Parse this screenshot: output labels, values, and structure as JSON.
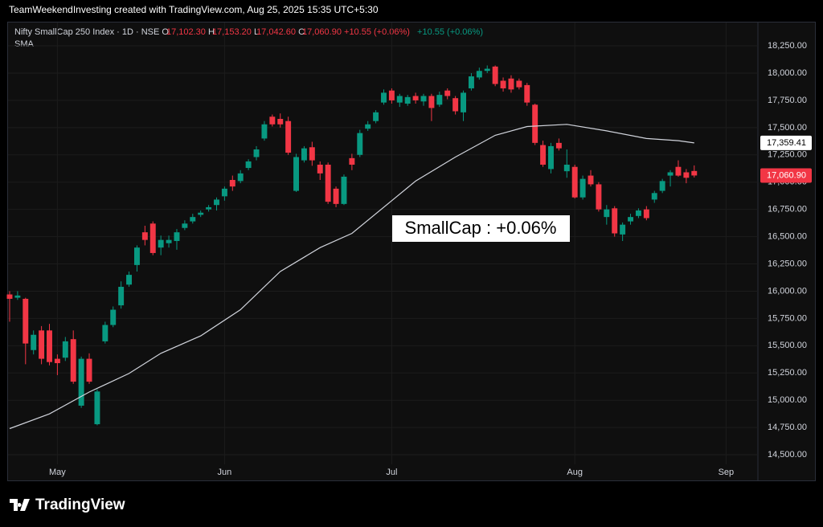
{
  "header": {
    "credit": "TeamWeekendInvesting created with TradingView.com, Aug 25, 2025 15:35 UTC+5:30",
    "brand": "TradingView"
  },
  "chart_data": {
    "type": "candlestick",
    "symbol": "Nifty SmallCap 250 Index · 1D · NSE",
    "ohlc_legend": [
      {
        "key": "O",
        "text": "17,102.30"
      },
      {
        "key": "H",
        "text": "17,153.20"
      },
      {
        "key": "L",
        "text": "17,042.60"
      },
      {
        "key": "C",
        "text": "17,060.90"
      }
    ],
    "change": "+10.55 (+0.06%)",
    "change_2": "+10.55 (+0.06%)",
    "annotation": "SmallCap : +0.06%",
    "up_color": "#089981",
    "down_color": "#f23645",
    "open": [
      15970,
      15940,
      15930,
      15460,
      15640,
      15640,
      15380,
      15390,
      15560,
      14950,
      15380,
      14780,
      15540,
      15690,
      15870,
      16060,
      16240,
      16540,
      16620,
      16400,
      16440,
      16460,
      16580,
      16640,
      16700,
      16750,
      16790,
      16870,
      17020,
      17010,
      17130,
      17230,
      17400,
      17600,
      17580,
      17560,
      16920,
      17200,
      17320,
      17160,
      17160,
      16940,
      16800,
      17220,
      17250,
      17490,
      17560,
      17730,
      17840,
      17730,
      17720,
      17790,
      17740,
      17790,
      17710,
      17840,
      17770,
      17640,
      17860,
      17960,
      18020,
      18060,
      17930,
      17950,
      17930,
      17890,
      17710,
      17340,
      17120,
      17360,
      17100,
      17140,
      16860,
      17060,
      16980,
      16680,
      16760,
      16520,
      16640,
      16690,
      16750,
      16840,
      16920,
      17060,
      17140,
      17090,
      17102.3
    ],
    "high": [
      16000,
      16000,
      15940,
      15640,
      15680,
      15700,
      15420,
      15580,
      15640,
      15400,
      15430,
      15100,
      15720,
      15860,
      16090,
      16180,
      16420,
      16600,
      16640,
      16510,
      16510,
      16570,
      16650,
      16710,
      16740,
      16790,
      16860,
      16960,
      17060,
      17110,
      17210,
      17330,
      17560,
      17620,
      17630,
      17600,
      17260,
      17330,
      17370,
      17190,
      17180,
      16960,
      17070,
      17260,
      17480,
      17560,
      17660,
      17850,
      17860,
      17810,
      17800,
      17820,
      17810,
      17810,
      17830,
      17860,
      17790,
      17840,
      18000,
      18050,
      18070,
      18070,
      17960,
      17980,
      17950,
      17910,
      17720,
      17380,
      17360,
      17400,
      17300,
      17160,
      17060,
      17110,
      17000,
      16790,
      16780,
      16630,
      16710,
      16760,
      16780,
      16920,
      17030,
      17110,
      17200,
      17120,
      17153.2
    ],
    "low": [
      15720,
      15920,
      15330,
      15420,
      15330,
      15320,
      15230,
      15360,
      15150,
      14930,
      15150,
      14770,
      15520,
      15670,
      15840,
      16040,
      16180,
      16420,
      16330,
      16330,
      16400,
      16380,
      16560,
      16620,
      16680,
      16730,
      16740,
      16830,
      16920,
      16990,
      17110,
      17200,
      17380,
      17510,
      17500,
      17250,
      16910,
      17180,
      17150,
      17020,
      16800,
      16770,
      16790,
      17110,
      17230,
      17470,
      17540,
      17710,
      17720,
      17690,
      17700,
      17720,
      17700,
      17560,
      17690,
      17760,
      17620,
      17560,
      17840,
      17940,
      18000,
      17880,
      17830,
      17820,
      17850,
      17700,
      17340,
      17140,
      17080,
      17290,
      17040,
      16850,
      16840,
      16960,
      16730,
      16610,
      16500,
      16460,
      16610,
      16670,
      16650,
      16810,
      16900,
      16960,
      17050,
      16990,
      17042.6
    ],
    "close": [
      15930,
      15960,
      15520,
      15600,
      15380,
      15350,
      15340,
      15540,
      15170,
      15380,
      15170,
      15080,
      15690,
      15830,
      16040,
      16150,
      16400,
      16470,
      16350,
      16470,
      16470,
      16540,
      16620,
      16680,
      16720,
      16770,
      16840,
      16940,
      16960,
      17080,
      17190,
      17300,
      17530,
      17530,
      17530,
      17270,
      17230,
      17310,
      17200,
      17080,
      16820,
      16800,
      17050,
      17160,
      17450,
      17530,
      17640,
      17820,
      17750,
      17790,
      17780,
      17750,
      17790,
      17680,
      17800,
      17790,
      17650,
      17820,
      17970,
      18020,
      18040,
      17900,
      17860,
      17850,
      17870,
      17730,
      17360,
      17160,
      17330,
      17310,
      17160,
      16860,
      17030,
      16980,
      16750,
      16750,
      16530,
      16610,
      16680,
      16740,
      16670,
      16900,
      17010,
      17090,
      17060,
      17040,
      17060.9
    ],
    "last_close_label": "17,060.90",
    "sma": {
      "name": "SMA",
      "color": "#d1d4dc",
      "x": [
        0,
        5,
        10,
        15,
        19,
        24,
        29,
        34,
        39,
        43,
        48,
        51,
        56,
        61,
        65,
        70,
        75,
        80,
        84,
        86
      ],
      "values": [
        14740,
        14875,
        15075,
        15245,
        15430,
        15590,
        15830,
        16180,
        16400,
        16530,
        16830,
        17010,
        17230,
        17430,
        17510,
        17530,
        17470,
        17400,
        17380,
        17359.41
      ],
      "last_label": "17,359.41"
    },
    "xlim": [
      -0.2,
      94
    ],
    "xticks": [
      {
        "value": 6,
        "label": "May"
      },
      {
        "value": 27,
        "label": "Jun"
      },
      {
        "value": 48,
        "label": "Jul"
      },
      {
        "value": 71,
        "label": "Aug"
      },
      {
        "value": 90,
        "label": "Sep"
      }
    ],
    "ylim": [
      14412,
      18464
    ],
    "yticks": [
      {
        "value": 14500,
        "label": "14,500.00"
      },
      {
        "value": 14750,
        "label": "14,750.00"
      },
      {
        "value": 15000,
        "label": "15,000.00"
      },
      {
        "value": 15250,
        "label": "15,250.00"
      },
      {
        "value": 15500,
        "label": "15,500.00"
      },
      {
        "value": 15750,
        "label": "15,750.00"
      },
      {
        "value": 16000,
        "label": "16,000.00"
      },
      {
        "value": 16250,
        "label": "16,250.00"
      },
      {
        "value": 16500,
        "label": "16,500.00"
      },
      {
        "value": 16750,
        "label": "16,750.00"
      },
      {
        "value": 17000,
        "label": "17,000.00"
      },
      {
        "value": 17250,
        "label": "17,250.00"
      },
      {
        "value": 17500,
        "label": "17,500.00"
      },
      {
        "value": 17750,
        "label": "17,750.00"
      },
      {
        "value": 18000,
        "label": "18,000.00"
      },
      {
        "value": 18250,
        "label": "18,250.00"
      }
    ],
    "grid": true
  }
}
